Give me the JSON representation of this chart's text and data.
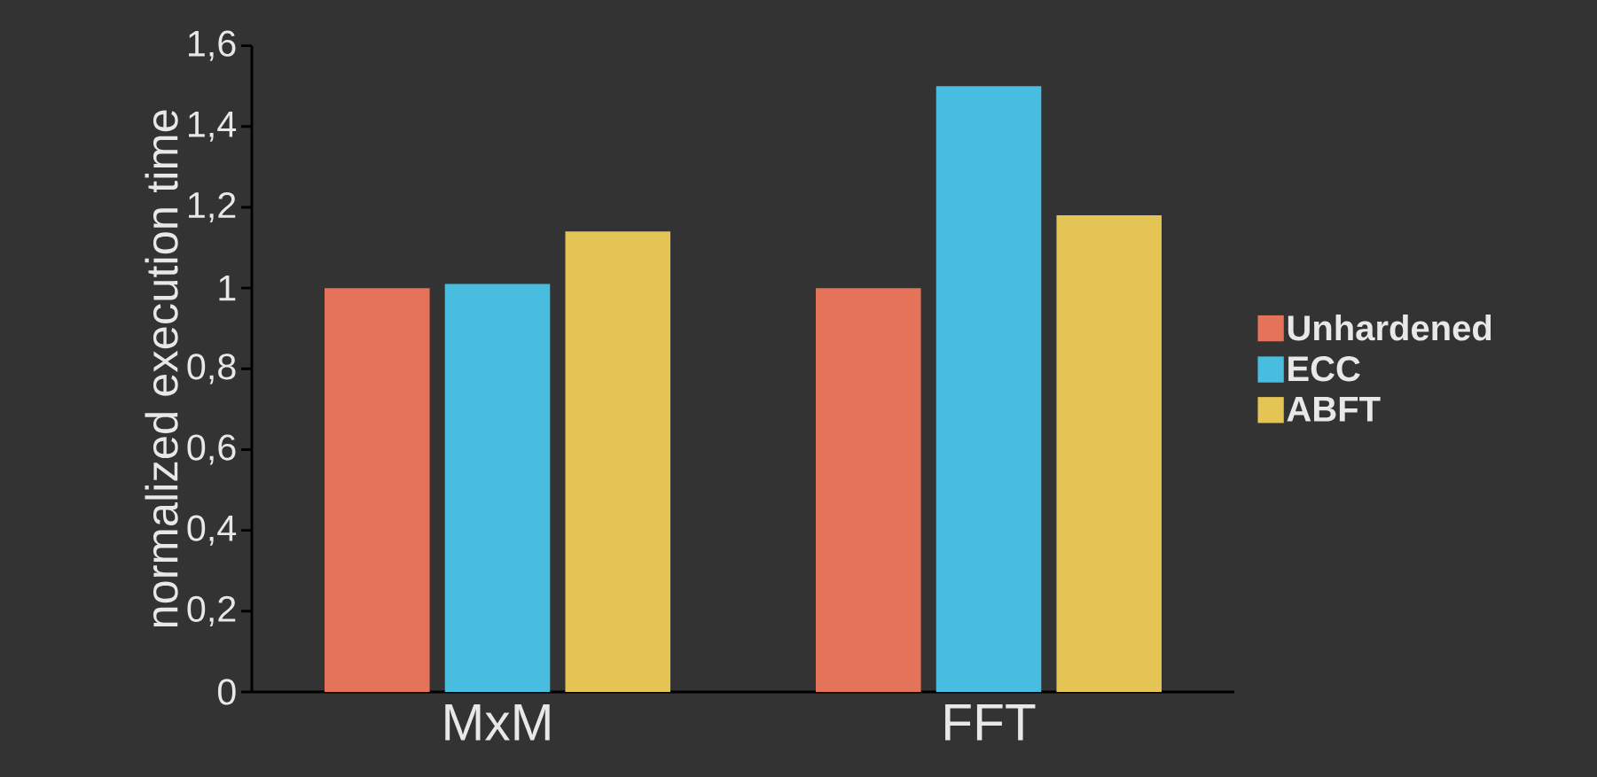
{
  "chart_data": {
    "type": "bar",
    "ylabel": "normalized execution time",
    "categories": [
      "MxM",
      "FFT"
    ],
    "series": [
      {
        "name": "Unhardened",
        "color": "#e5735a",
        "values": [
          1.0,
          1.0
        ]
      },
      {
        "name": "ECC",
        "color": "#48bde0",
        "values": [
          1.01,
          1.5
        ]
      },
      {
        "name": "ABFT",
        "color": "#e3c454",
        "values": [
          1.14,
          1.18
        ]
      }
    ],
    "ylim": [
      0,
      1.6
    ],
    "yticks": [
      0,
      {
        "value": 0.2,
        "label": "0,2"
      },
      {
        "value": 0.4,
        "label": "0,4"
      },
      {
        "value": 0.6,
        "label": "0,6"
      },
      {
        "value": 0.8,
        "label": "0,8"
      },
      1,
      {
        "value": 1.2,
        "label": "1,2"
      },
      {
        "value": 1.4,
        "label": "1,4"
      },
      {
        "value": 1.6,
        "label": "1,6"
      }
    ],
    "legend": "right"
  }
}
